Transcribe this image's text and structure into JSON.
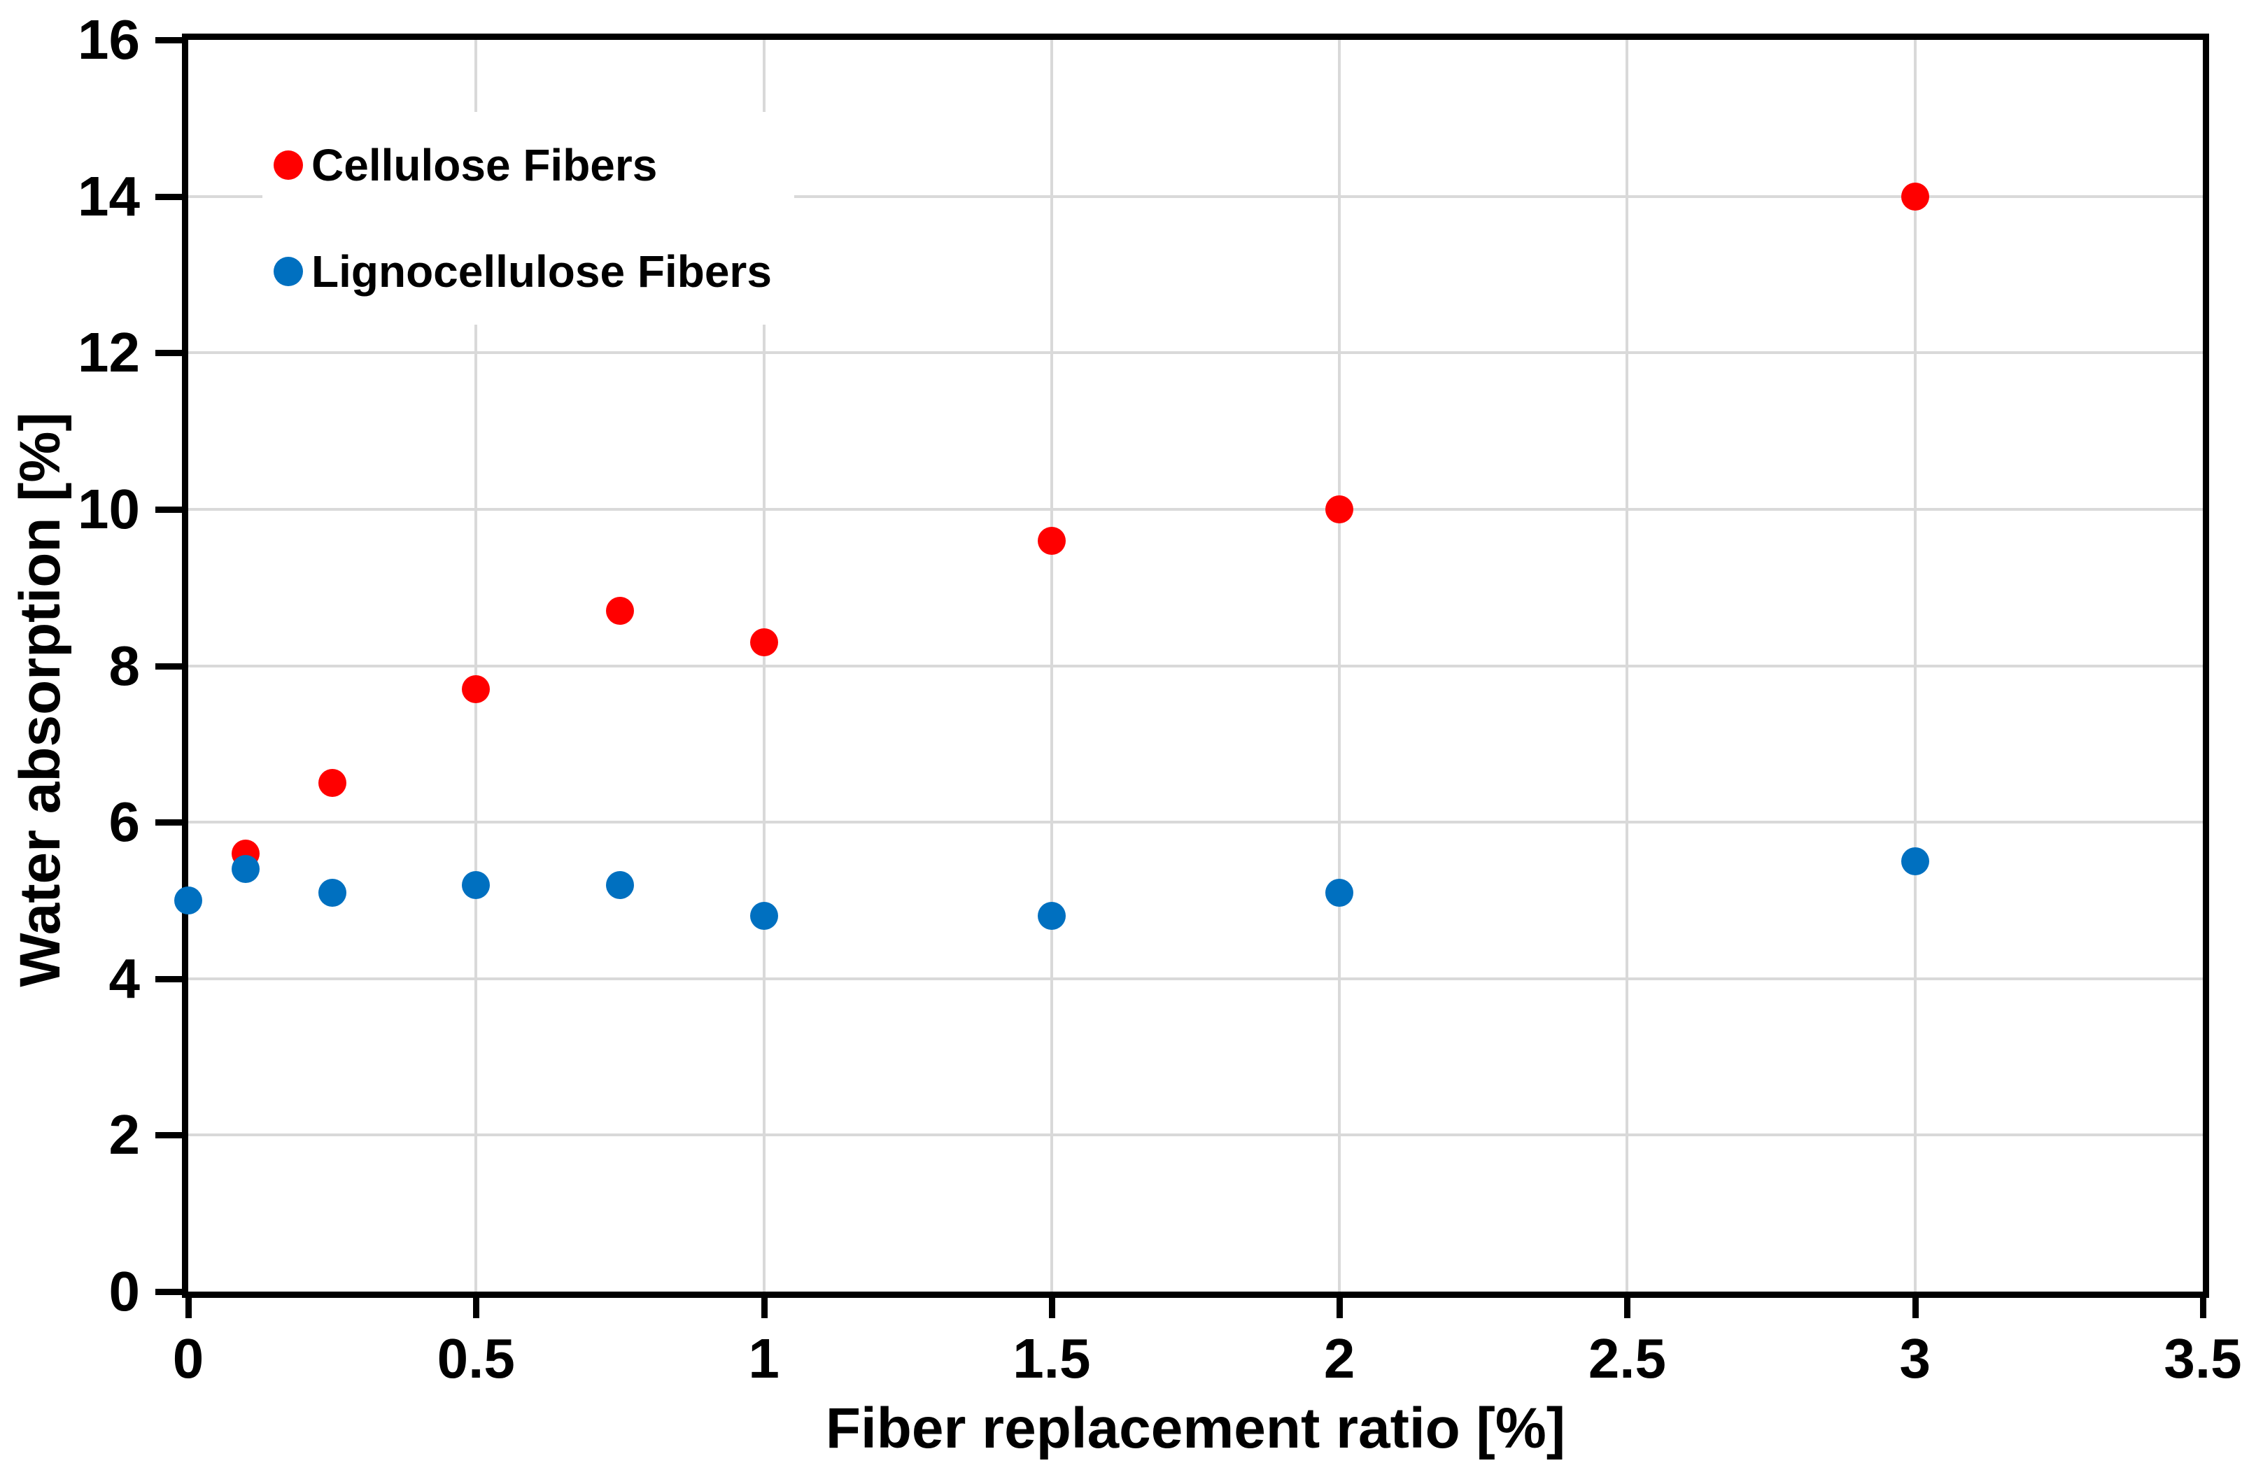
{
  "figure": {
    "background_color": "#FFFFFF",
    "text_color": "#000000",
    "axis_color": "#000000"
  },
  "chart_data": {
    "type": "scatter",
    "title": "",
    "xlabel": "Fiber replacement ratio [%]",
    "ylabel": "Water absorption [%]",
    "xlim": [
      0,
      3.5
    ],
    "ylim": [
      0,
      16
    ],
    "xticks": [
      0,
      0.5,
      1,
      1.5,
      2,
      2.5,
      3,
      3.5
    ],
    "xtick_labels": [
      "0",
      "0.5",
      "1",
      "1.5",
      "2",
      "2.5",
      "3",
      "3.5"
    ],
    "yticks": [
      0,
      2,
      4,
      6,
      8,
      10,
      12,
      14,
      16
    ],
    "ytick_labels": [
      "0",
      "2",
      "4",
      "6",
      "8",
      "10",
      "12",
      "14",
      "16"
    ],
    "grid": true,
    "gridline_color": "#D9D9D9",
    "legend_position": "top-left-inside",
    "marker_diameter_px": 40,
    "series": [
      {
        "name": "Cellulose Fibers",
        "color": "#FF0000",
        "marker": "circle",
        "points": [
          [
            0.1,
            5.6
          ],
          [
            0.25,
            6.5
          ],
          [
            0.5,
            7.7
          ],
          [
            0.75,
            8.7
          ],
          [
            1,
            8.3
          ],
          [
            1.5,
            9.6
          ],
          [
            2,
            10.0
          ],
          [
            3,
            14.0
          ]
        ]
      },
      {
        "name": "Lignocellulose Fibers",
        "color": "#0070C0",
        "marker": "circle",
        "points": [
          [
            0,
            5.0
          ],
          [
            0.1,
            5.4
          ],
          [
            0.25,
            5.1
          ],
          [
            0.5,
            5.2
          ],
          [
            0.75,
            5.2
          ],
          [
            1,
            4.8
          ],
          [
            1.5,
            4.8
          ],
          [
            2,
            5.1
          ],
          [
            3,
            5.5
          ]
        ]
      }
    ]
  }
}
